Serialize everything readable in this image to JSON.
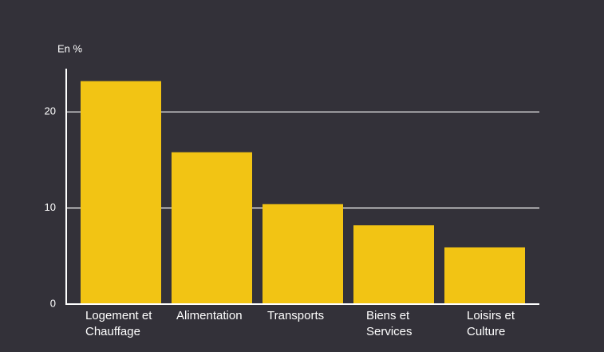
{
  "chart_data": {
    "type": "bar",
    "y_axis_label": "En %",
    "categories": [
      "Logement et Chauffage",
      "Alimentation",
      "Transports",
      "Biens et Services",
      "Loisirs et Culture"
    ],
    "values": [
      23.2,
      15.8,
      10.4,
      8.2,
      5.9
    ],
    "color": "#f2c414",
    "ylim": [
      0,
      24.5
    ],
    "yticks": [
      0,
      10,
      20
    ],
    "grid": true
  }
}
